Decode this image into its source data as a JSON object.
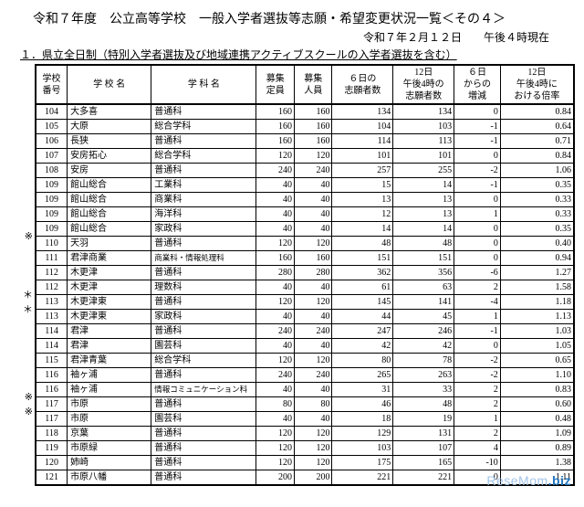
{
  "header": {
    "title": "令和７年度　公立高等学校　一般入学者選抜等志願・希望変更状況一覧＜その４＞",
    "date": "令和７年２月１２日　　午後４時現在",
    "subtitle": "１．県立全日制（特別入学者選抜及び地域連携アクティブスクールの入学者選抜を含む）"
  },
  "columns": {
    "c0": "学校\n番号",
    "c1": "学 校 名",
    "c2": "学 科 名",
    "c3": "募集\n定員",
    "c4": "募集\n人員",
    "c5": "６日の\n志願者数",
    "c6": "12日\n午後4時の\n志願者数",
    "c7": "６日\nからの\n増減",
    "c8": "12日\n午後4時に\nおける倍率"
  },
  "rows": [
    {
      "m": "",
      "no": "104",
      "school": "大多喜",
      "dept": "普通科",
      "teiin": "160",
      "ninzu": "160",
      "d6": "134",
      "d12": "134",
      "diff": "0",
      "rate": "0.84"
    },
    {
      "m": "",
      "no": "105",
      "school": "大原",
      "dept": "総合学科",
      "teiin": "160",
      "ninzu": "160",
      "d6": "104",
      "d12": "103",
      "diff": "-1",
      "rate": "0.64"
    },
    {
      "m": "",
      "no": "106",
      "school": "長狭",
      "dept": "普通科",
      "teiin": "160",
      "ninzu": "160",
      "d6": "114",
      "d12": "113",
      "diff": "-1",
      "rate": "0.71"
    },
    {
      "m": "",
      "no": "107",
      "school": "安房拓心",
      "dept": "総合学科",
      "teiin": "120",
      "ninzu": "120",
      "d6": "101",
      "d12": "101",
      "diff": "0",
      "rate": "0.84"
    },
    {
      "m": "",
      "no": "108",
      "school": "安房",
      "dept": "普通科",
      "teiin": "240",
      "ninzu": "240",
      "d6": "257",
      "d12": "255",
      "diff": "-2",
      "rate": "1.06"
    },
    {
      "m": "",
      "no": "109",
      "school": "館山総合",
      "dept": "工業科",
      "teiin": "40",
      "ninzu": "40",
      "d6": "15",
      "d12": "14",
      "diff": "-1",
      "rate": "0.35"
    },
    {
      "m": "",
      "no": "109",
      "school": "館山総合",
      "dept": "商業科",
      "teiin": "40",
      "ninzu": "40",
      "d6": "13",
      "d12": "13",
      "diff": "0",
      "rate": "0.33"
    },
    {
      "m": "",
      "no": "109",
      "school": "館山総合",
      "dept": "海洋科",
      "teiin": "40",
      "ninzu": "40",
      "d6": "12",
      "d12": "13",
      "diff": "1",
      "rate": "0.33"
    },
    {
      "m": "",
      "no": "109",
      "school": "館山総合",
      "dept": "家政科",
      "teiin": "40",
      "ninzu": "40",
      "d6": "14",
      "d12": "14",
      "diff": "0",
      "rate": "0.35"
    },
    {
      "m": "※",
      "no": "110",
      "school": "天羽",
      "dept": "普通科",
      "teiin": "120",
      "ninzu": "120",
      "d6": "48",
      "d12": "48",
      "diff": "0",
      "rate": "0.40"
    },
    {
      "m": "",
      "no": "111",
      "school": "君津商業",
      "dept": "商業科・情報処理科",
      "teiin": "160",
      "ninzu": "160",
      "d6": "151",
      "d12": "151",
      "diff": "0",
      "rate": "0.94"
    },
    {
      "m": "",
      "no": "112",
      "school": "木更津",
      "dept": "普通科",
      "teiin": "280",
      "ninzu": "280",
      "d6": "362",
      "d12": "356",
      "diff": "-6",
      "rate": "1.27"
    },
    {
      "m": "",
      "no": "112",
      "school": "木更津",
      "dept": "理数科",
      "teiin": "40",
      "ninzu": "40",
      "d6": "61",
      "d12": "63",
      "diff": "2",
      "rate": "1.58"
    },
    {
      "m": "＊",
      "no": "113",
      "school": "木更津東",
      "dept": "普通科",
      "teiin": "120",
      "ninzu": "120",
      "d6": "145",
      "d12": "141",
      "diff": "-4",
      "rate": "1.18"
    },
    {
      "m": "＊",
      "no": "113",
      "school": "木更津東",
      "dept": "家政科",
      "teiin": "40",
      "ninzu": "40",
      "d6": "44",
      "d12": "45",
      "diff": "1",
      "rate": "1.13"
    },
    {
      "m": "",
      "no": "114",
      "school": "君津",
      "dept": "普通科",
      "teiin": "240",
      "ninzu": "240",
      "d6": "247",
      "d12": "246",
      "diff": "-1",
      "rate": "1.03"
    },
    {
      "m": "",
      "no": "114",
      "school": "君津",
      "dept": "園芸科",
      "teiin": "40",
      "ninzu": "40",
      "d6": "42",
      "d12": "42",
      "diff": "0",
      "rate": "1.05"
    },
    {
      "m": "",
      "no": "115",
      "school": "君津青葉",
      "dept": "総合学科",
      "teiin": "120",
      "ninzu": "120",
      "d6": "80",
      "d12": "78",
      "diff": "-2",
      "rate": "0.65"
    },
    {
      "m": "",
      "no": "116",
      "school": "袖ヶ浦",
      "dept": "普通科",
      "teiin": "240",
      "ninzu": "240",
      "d6": "265",
      "d12": "263",
      "diff": "-2",
      "rate": "1.10"
    },
    {
      "m": "",
      "no": "116",
      "school": "袖ヶ浦",
      "dept": "情報コミュニケーション科",
      "teiin": "40",
      "ninzu": "40",
      "d6": "31",
      "d12": "33",
      "diff": "2",
      "rate": "0.83"
    },
    {
      "m": "※",
      "no": "117",
      "school": "市原",
      "dept": "普通科",
      "teiin": "80",
      "ninzu": "80",
      "d6": "46",
      "d12": "48",
      "diff": "2",
      "rate": "0.60"
    },
    {
      "m": "※",
      "no": "117",
      "school": "市原",
      "dept": "園芸科",
      "teiin": "40",
      "ninzu": "40",
      "d6": "18",
      "d12": "19",
      "diff": "1",
      "rate": "0.48"
    },
    {
      "m": "",
      "no": "118",
      "school": "京葉",
      "dept": "普通科",
      "teiin": "120",
      "ninzu": "120",
      "d6": "129",
      "d12": "131",
      "diff": "2",
      "rate": "1.09"
    },
    {
      "m": "",
      "no": "119",
      "school": "市原緑",
      "dept": "普通科",
      "teiin": "120",
      "ninzu": "120",
      "d6": "103",
      "d12": "107",
      "diff": "4",
      "rate": "0.89"
    },
    {
      "m": "",
      "no": "120",
      "school": "姉崎",
      "dept": "普通科",
      "teiin": "120",
      "ninzu": "120",
      "d6": "175",
      "d12": "165",
      "diff": "-10",
      "rate": "1.38"
    },
    {
      "m": "",
      "no": "121",
      "school": "市原八幡",
      "dept": "普通科",
      "teiin": "200",
      "ninzu": "200",
      "d6": "221",
      "d12": "221",
      "diff": "0",
      "rate": "1.11"
    }
  ],
  "logo": {
    "a": "ReseMom",
    "b": ".biz"
  }
}
